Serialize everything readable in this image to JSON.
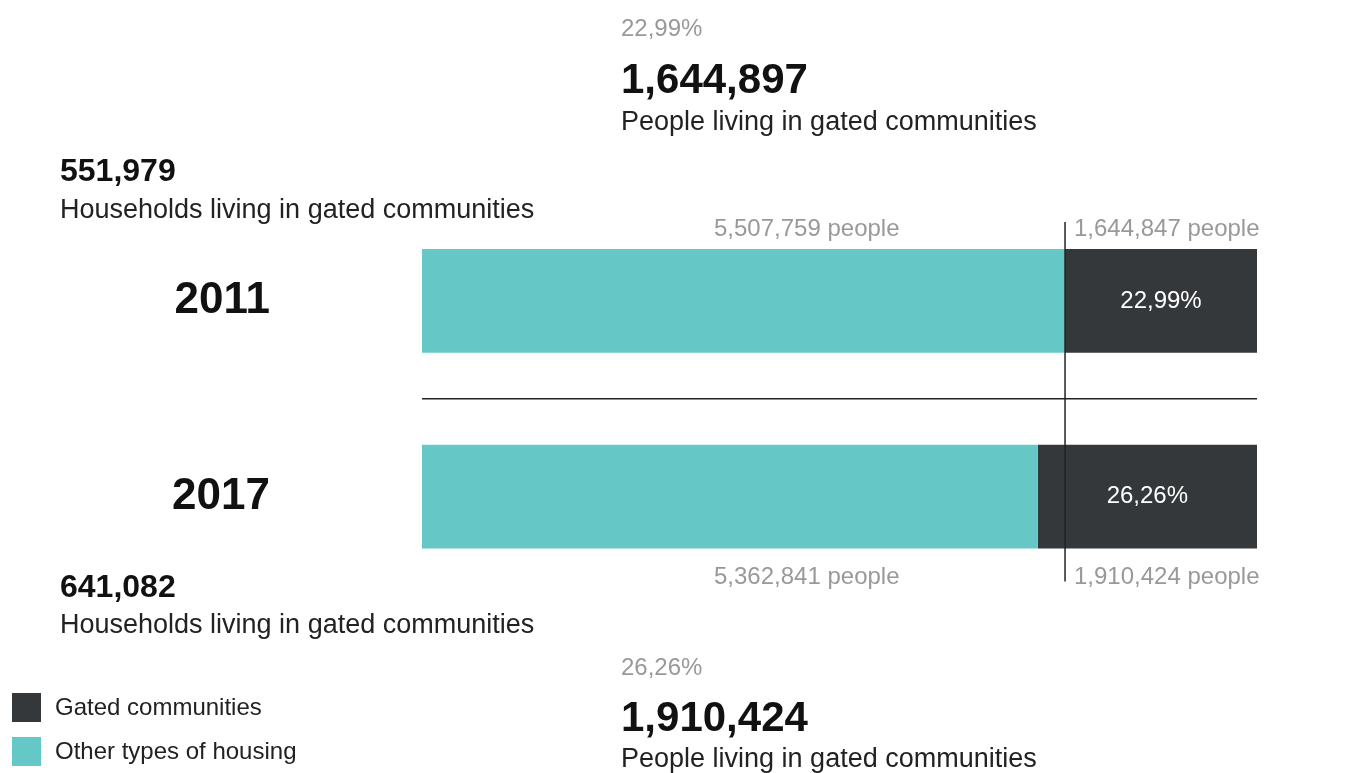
{
  "chart_data": {
    "type": "bar",
    "orientation": "horizontal",
    "stacked": true,
    "xlim": [
      0,
      100
    ],
    "tick_labels": "y",
    "categories": [
      "2011",
      "2017"
    ],
    "series": [
      {
        "name": "Other types of housing",
        "color": "#66c8c6",
        "values": [
          77.01,
          73.74
        ]
      },
      {
        "name": "Gated communities",
        "color": "#35383b",
        "values": [
          22.99,
          26.26
        ],
        "value_labels": [
          "22,99%",
          "26,26%"
        ]
      }
    ],
    "annotations": [
      "22,99%",
      "1,644,897",
      "People living in gated communities",
      "551,979",
      "Households living in gated communities",
      "641,082",
      "Households living in gated communities",
      "26,26%",
      "1,910,424",
      "People living in gated communities",
      "5,507,759 people",
      "1,644,847 people",
      "5,362,841 people",
      "1,910,424 people"
    ],
    "ref_lines": [
      {
        "axis": "x",
        "value": 77.01,
        "color": "#222222"
      }
    ],
    "grid": "y",
    "legend": "bottom left"
  }
}
